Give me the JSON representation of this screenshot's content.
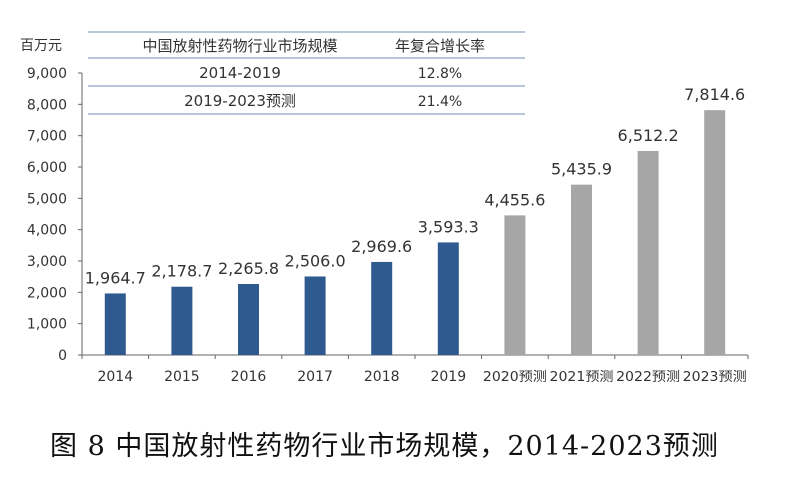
{
  "chart_data": {
    "type": "bar",
    "unit_label": "百万元",
    "categories": [
      "2014",
      "2015",
      "2016",
      "2017",
      "2018",
      "2019",
      "2020预测",
      "2021预测",
      "2022预测",
      "2023预测"
    ],
    "values": [
      1964.7,
      2178.7,
      2265.8,
      2506.0,
      2969.6,
      3593.3,
      4455.6,
      5435.9,
      6512.2,
      7814.6
    ],
    "value_labels": [
      "1,964.7",
      "2,178.7",
      "2,265.8",
      "2,506.0",
      "2,969.6",
      "3,593.3",
      "4,455.6",
      "5,435.9",
      "6,512.2",
      "7,814.6"
    ],
    "forecast": [
      false,
      false,
      false,
      false,
      false,
      false,
      true,
      true,
      true,
      true
    ],
    "ylim": [
      0,
      9000
    ],
    "yticks": [
      0,
      1000,
      2000,
      3000,
      4000,
      5000,
      6000,
      7000,
      8000,
      9000
    ],
    "ytick_labels": [
      "0",
      "1,000",
      "2,000",
      "3,000",
      "4,000",
      "5,000",
      "6,000",
      "7,000",
      "8,000",
      "9,000"
    ],
    "grid": false,
    "colors": {
      "actual": "#2f5a8f",
      "forecast": "#a6a6a6"
    },
    "inset_table": {
      "headers": [
        "中国放射性药物行业市场规模",
        "年复合增长率"
      ],
      "rows": [
        [
          "2014-2019",
          "12.8%"
        ],
        [
          "2019-2023预测",
          "21.4%"
        ]
      ]
    }
  },
  "caption": "图 8 中国放射性药物行业市场规模，2014-2023预测"
}
